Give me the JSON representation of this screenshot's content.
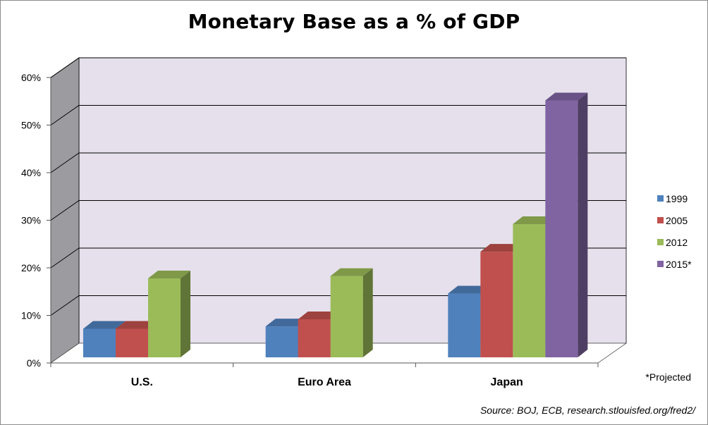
{
  "chart_data": {
    "type": "bar",
    "title": "Monetary Base as a % of GDP",
    "xlabel": "",
    "ylabel": "",
    "categories": [
      "U.S.",
      "Euro Area",
      "Japan"
    ],
    "series": [
      {
        "name": "1999",
        "values": [
          6.0,
          6.5,
          13.4
        ],
        "color": "#4f81bd"
      },
      {
        "name": "2005",
        "values": [
          6.0,
          8.0,
          22.2
        ],
        "color": "#c0504d"
      },
      {
        "name": "2012",
        "values": [
          16.6,
          17.1,
          28.0
        ],
        "color": "#9bbb59"
      },
      {
        "name": "2015*",
        "values": [
          null,
          null,
          54.0
        ],
        "color": "#8064a2"
      }
    ],
    "ylim": [
      0,
      60
    ],
    "yticks": [
      0,
      10,
      20,
      30,
      40,
      50,
      60
    ],
    "ytick_labels": [
      "0%",
      "10%",
      "20%",
      "30%",
      "40%",
      "50%",
      "60%"
    ],
    "grid": true,
    "legend_position": "right",
    "annotations": [
      "*Projected"
    ],
    "source": "Source:  BOJ, ECB, research.stlouisfed.org/fred2/"
  }
}
